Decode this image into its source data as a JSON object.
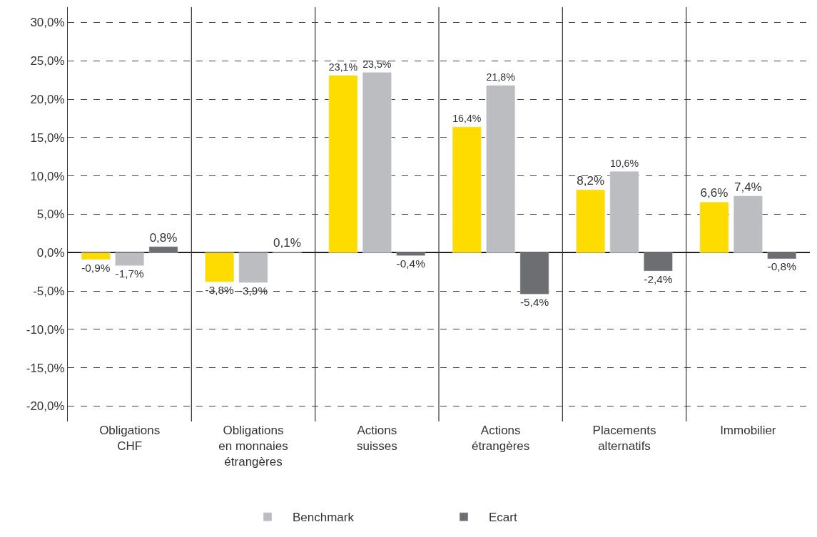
{
  "chart_data": {
    "type": "bar",
    "categories": [
      "Obligations\nCHF",
      "Obligations\nen monnaies\nétrangères",
      "Actions\nsuisses",
      "Actions\nétrangères",
      "Placements\nalternatifs",
      "Immobilier"
    ],
    "series": [
      {
        "color": "#ffdc00",
        "values": [
          -0.9,
          -3.8,
          23.1,
          16.4,
          8.2,
          6.6
        ],
        "value_labels": [
          "-0,9%",
          "-3,8%",
          "23,1%",
          "16,4%",
          "8,2%",
          "6,6%"
        ]
      },
      {
        "name": "Benchmark",
        "color": "#bcbdc0",
        "values": [
          -1.7,
          -3.9,
          23.5,
          21.8,
          10.6,
          7.4
        ],
        "value_labels": [
          "-1,7%",
          "-3,9%",
          "23,5%",
          "21,8%",
          "10,6%",
          "7,4%"
        ]
      },
      {
        "name": "Ecart",
        "color": "#6d6e71",
        "values": [
          0.8,
          0.1,
          -0.4,
          -5.4,
          -2.4,
          -0.8
        ],
        "value_labels": [
          "0,8%",
          "0,1%",
          "-0,4%",
          "-5,4%",
          "-2,4%",
          "-0,8%"
        ]
      }
    ],
    "ylim": [
      -22,
      32
    ],
    "yticks": [
      {
        "value": -20,
        "label": "-20,0%"
      },
      {
        "value": -15,
        "label": "-15,0%"
      },
      {
        "value": -10,
        "label": "-10,0%"
      },
      {
        "value": -5,
        "label": "-5,0%"
      },
      {
        "value": 0,
        "label": "0,0%"
      },
      {
        "value": 5,
        "label": "5,0%"
      },
      {
        "value": 10,
        "label": "10,0%"
      },
      {
        "value": 15,
        "label": "15,0%"
      },
      {
        "value": 20,
        "label": "20,0%"
      },
      {
        "value": 25,
        "label": "25,0%"
      },
      {
        "value": 30,
        "label": "30,0%"
      }
    ],
    "grid": true,
    "legend": "bottom"
  }
}
